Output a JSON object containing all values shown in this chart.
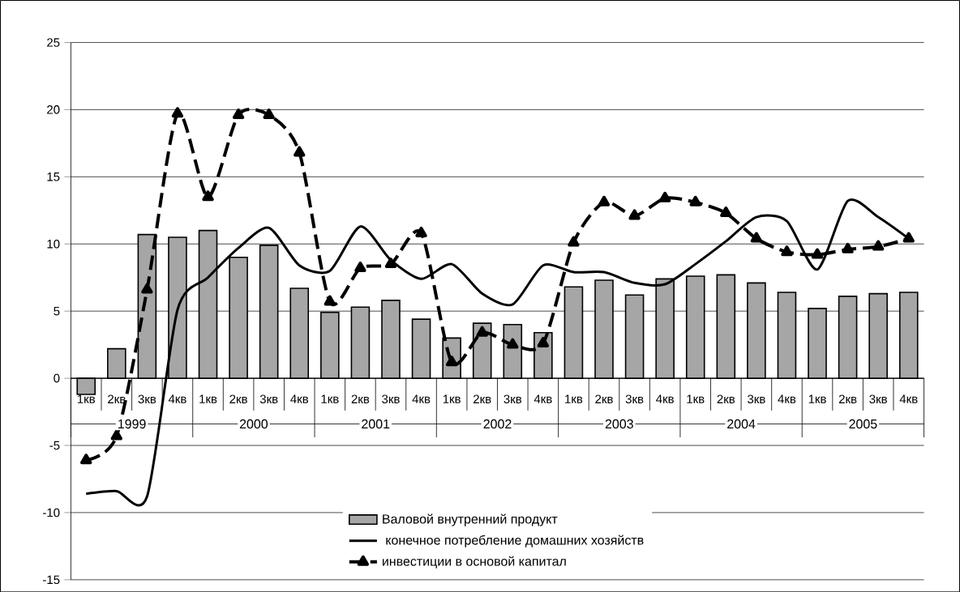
{
  "chart_data": {
    "type": "bar",
    "categories": [
      "1кв",
      "2кв",
      "3кв",
      "4кв",
      "1кв",
      "2кв",
      "3кв",
      "4кв",
      "1кв",
      "2кв",
      "3кв",
      "4кв",
      "1кв",
      "2кв",
      "3кв",
      "4кв",
      "1кв",
      "2кв",
      "3кв",
      "4кв",
      "1кв",
      "2кв",
      "3кв",
      "4кв",
      "1кв",
      "2кв",
      "3кв",
      "4кв"
    ],
    "series": [
      {
        "name": "Валовой внутренний продукт",
        "type": "bar",
        "color": "#a6a6a6",
        "values": [
          -1.2,
          2.2,
          10.7,
          10.5,
          11.0,
          9.0,
          9.9,
          6.7,
          4.9,
          5.3,
          5.8,
          4.4,
          3.0,
          4.1,
          4.0,
          3.4,
          6.8,
          7.3,
          6.2,
          7.4,
          7.6,
          7.7,
          7.1,
          6.4,
          5.2,
          6.1,
          6.3,
          6.4
        ]
      },
      {
        "name": " конечное потребление  домашних хозяйств",
        "type": "line",
        "color": "#000000",
        "marker": "none",
        "line_style": "solid",
        "values": [
          -8.6,
          -8.4,
          -8.8,
          5.1,
          7.5,
          9.7,
          11.2,
          8.4,
          8.0,
          11.3,
          8.8,
          7.4,
          8.5,
          6.3,
          5.5,
          8.4,
          7.9,
          7.9,
          7.1,
          7.0,
          8.5,
          10.2,
          12.0,
          11.7,
          8.1,
          13.2,
          12.0,
          10.4
        ]
      },
      {
        "name": "инвестиции в основой капитал",
        "type": "line",
        "color": "#000000",
        "marker": "triangle",
        "line_style": "dashed",
        "values": [
          -6.1,
          -4.3,
          6.6,
          19.7,
          13.5,
          19.6,
          19.6,
          16.8,
          5.7,
          8.2,
          8.5,
          10.8,
          1.2,
          3.4,
          2.5,
          2.6,
          10.1,
          13.1,
          12.1,
          13.4,
          13.1,
          12.3,
          10.4,
          9.4,
          9.2,
          9.6,
          9.8,
          10.4
        ]
      }
    ],
    "annotations": [
      "1999",
      "2000",
      "2001",
      "2002",
      "2003",
      "2004",
      "2005"
    ],
    "ylim": [
      -15,
      25
    ],
    "yticks": [
      -15,
      -10,
      -5,
      0,
      5,
      10,
      15,
      20,
      25
    ],
    "grid": "y",
    "legend": "bottom"
  }
}
